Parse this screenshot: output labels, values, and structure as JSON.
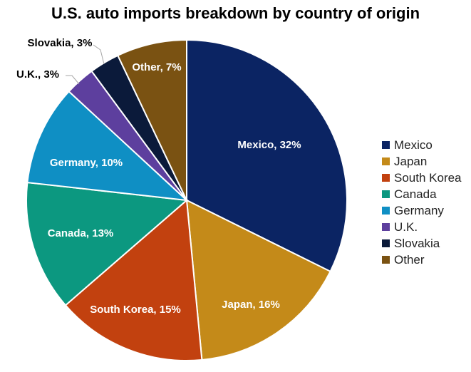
{
  "chart_data": {
    "type": "pie",
    "title": "U.S. auto imports breakdown by country of origin",
    "legend_position": "right",
    "slices": [
      {
        "name": "Mexico",
        "value": 32,
        "label": "Mexico, 32%",
        "color": "#0b2463",
        "label_color": "#ffffff"
      },
      {
        "name": "Japan",
        "value": 16,
        "label": "Japan, 16%",
        "color": "#c48a19",
        "label_color": "#ffffff"
      },
      {
        "name": "South Korea",
        "value": 15,
        "label": "South Korea, 15%",
        "color": "#c2410f",
        "label_color": "#ffffff"
      },
      {
        "name": "Canada",
        "value": 13,
        "label": "Canada, 13%",
        "color": "#0c9880",
        "label_color": "#ffffff"
      },
      {
        "name": "Germany",
        "value": 10,
        "label": "Germany, 10%",
        "color": "#0f8fc4",
        "label_color": "#ffffff"
      },
      {
        "name": "U.K.",
        "value": 3,
        "label": "U.K., 3%",
        "color": "#5d3f9e",
        "label_color": "#000000"
      },
      {
        "name": "Slovakia",
        "value": 3,
        "label": "Slovakia, 3%",
        "color": "#0b1a3a",
        "label_color": "#000000"
      },
      {
        "name": "Other",
        "value": 7,
        "label": "Other, 7%",
        "color": "#7a5212",
        "label_color": "#ffffff"
      }
    ]
  }
}
